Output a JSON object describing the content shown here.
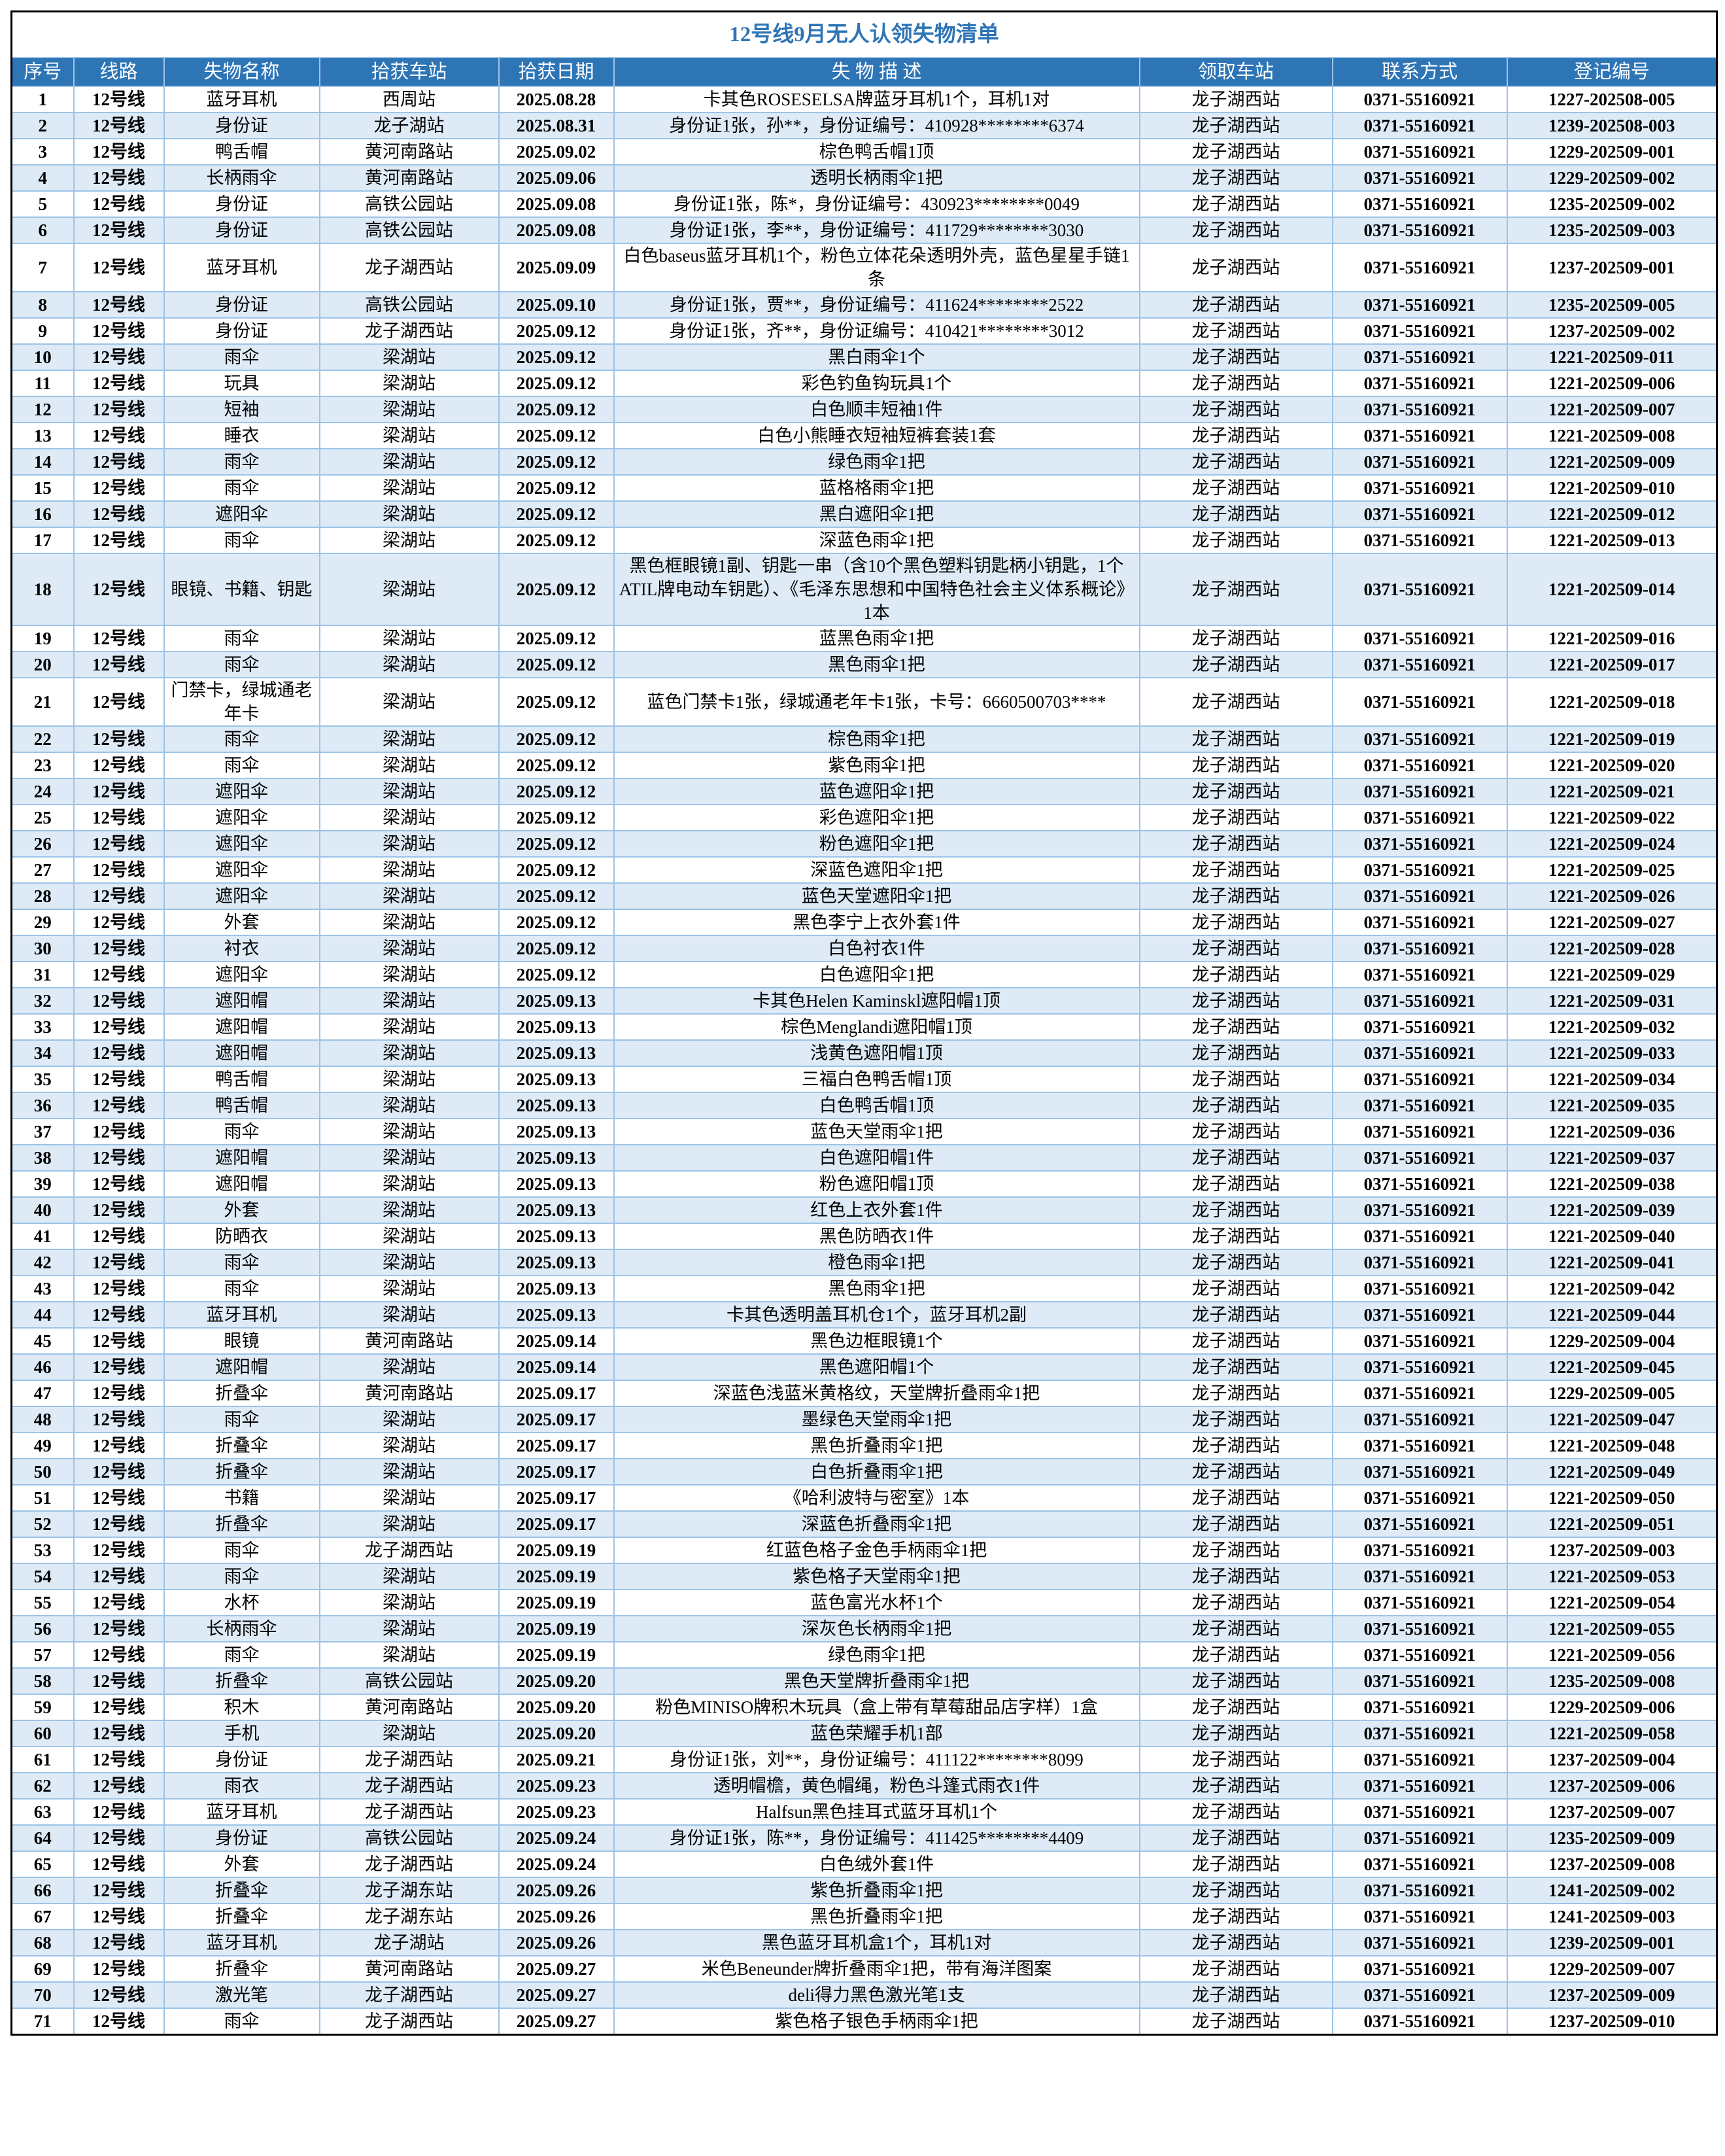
{
  "title": "12号线9月无人认领失物清单",
  "colors": {
    "header_bg": "#2e75b6",
    "title_text": "#2e75b6",
    "stripe": "#deebf7",
    "grid": "#9dc3e6"
  },
  "columns": [
    "序号",
    "线路",
    "失物名称",
    "拾获车站",
    "拾获日期",
    "失 物 描 述",
    "领取车站",
    "联系方式",
    "登记编号"
  ],
  "rows": [
    [
      "1",
      "12号线",
      "蓝牙耳机",
      "西周站",
      "2025.08.28",
      "卡其色ROSESELSA牌蓝牙耳机1个，耳机1对",
      "龙子湖西站",
      "0371-55160921",
      "1227-202508-005"
    ],
    [
      "2",
      "12号线",
      "身份证",
      "龙子湖站",
      "2025.08.31",
      "身份证1张，孙**，身份证编号：410928********6374",
      "龙子湖西站",
      "0371-55160921",
      "1239-202508-003"
    ],
    [
      "3",
      "12号线",
      "鸭舌帽",
      "黄河南路站",
      "2025.09.02",
      "棕色鸭舌帽1顶",
      "龙子湖西站",
      "0371-55160921",
      "1229-202509-001"
    ],
    [
      "4",
      "12号线",
      "长柄雨伞",
      "黄河南路站",
      "2025.09.06",
      "透明长柄雨伞1把",
      "龙子湖西站",
      "0371-55160921",
      "1229-202509-002"
    ],
    [
      "5",
      "12号线",
      "身份证",
      "高铁公园站",
      "2025.09.08",
      "身份证1张，陈*，身份证编号：430923********0049",
      "龙子湖西站",
      "0371-55160921",
      "1235-202509-002"
    ],
    [
      "6",
      "12号线",
      "身份证",
      "高铁公园站",
      "2025.09.08",
      "身份证1张，李**，身份证编号：411729********3030",
      "龙子湖西站",
      "0371-55160921",
      "1235-202509-003"
    ],
    [
      "7",
      "12号线",
      "蓝牙耳机",
      "龙子湖西站",
      "2025.09.09",
      "白色baseus蓝牙耳机1个，粉色立体花朵透明外壳，蓝色星星手链1条",
      "龙子湖西站",
      "0371-55160921",
      "1237-202509-001"
    ],
    [
      "8",
      "12号线",
      "身份证",
      "高铁公园站",
      "2025.09.10",
      "身份证1张，贾**，身份证编号：411624********2522",
      "龙子湖西站",
      "0371-55160921",
      "1235-202509-005"
    ],
    [
      "9",
      "12号线",
      "身份证",
      "龙子湖西站",
      "2025.09.12",
      "身份证1张，齐**，身份证编号：410421********3012",
      "龙子湖西站",
      "0371-55160921",
      "1237-202509-002"
    ],
    [
      "10",
      "12号线",
      "雨伞",
      "梁湖站",
      "2025.09.12",
      "黑白雨伞1个",
      "龙子湖西站",
      "0371-55160921",
      "1221-202509-011"
    ],
    [
      "11",
      "12号线",
      "玩具",
      "梁湖站",
      "2025.09.12",
      "彩色钓鱼钩玩具1个",
      "龙子湖西站",
      "0371-55160921",
      "1221-202509-006"
    ],
    [
      "12",
      "12号线",
      "短袖",
      "梁湖站",
      "2025.09.12",
      "白色顺丰短袖1件",
      "龙子湖西站",
      "0371-55160921",
      "1221-202509-007"
    ],
    [
      "13",
      "12号线",
      "睡衣",
      "梁湖站",
      "2025.09.12",
      "白色小熊睡衣短袖短裤套装1套",
      "龙子湖西站",
      "0371-55160921",
      "1221-202509-008"
    ],
    [
      "14",
      "12号线",
      "雨伞",
      "梁湖站",
      "2025.09.12",
      "绿色雨伞1把",
      "龙子湖西站",
      "0371-55160921",
      "1221-202509-009"
    ],
    [
      "15",
      "12号线",
      "雨伞",
      "梁湖站",
      "2025.09.12",
      "蓝格格雨伞1把",
      "龙子湖西站",
      "0371-55160921",
      "1221-202509-010"
    ],
    [
      "16",
      "12号线",
      "遮阳伞",
      "梁湖站",
      "2025.09.12",
      "黑白遮阳伞1把",
      "龙子湖西站",
      "0371-55160921",
      "1221-202509-012"
    ],
    [
      "17",
      "12号线",
      "雨伞",
      "梁湖站",
      "2025.09.12",
      "深蓝色雨伞1把",
      "龙子湖西站",
      "0371-55160921",
      "1221-202509-013"
    ],
    [
      "18",
      "12号线",
      "眼镜、书籍、钥匙",
      "梁湖站",
      "2025.09.12",
      "黑色框眼镜1副、钥匙一串（含10个黑色塑料钥匙柄小钥匙，1个ATIL牌电动车钥匙）、《毛泽东思想和中国特色社会主义体系概论》1本",
      "龙子湖西站",
      "0371-55160921",
      "1221-202509-014"
    ],
    [
      "19",
      "12号线",
      "雨伞",
      "梁湖站",
      "2025.09.12",
      "蓝黑色雨伞1把",
      "龙子湖西站",
      "0371-55160921",
      "1221-202509-016"
    ],
    [
      "20",
      "12号线",
      "雨伞",
      "梁湖站",
      "2025.09.12",
      "黑色雨伞1把",
      "龙子湖西站",
      "0371-55160921",
      "1221-202509-017"
    ],
    [
      "21",
      "12号线",
      "门禁卡，绿城通老年卡",
      "梁湖站",
      "2025.09.12",
      "蓝色门禁卡1张，绿城通老年卡1张，卡号：6660500703****",
      "龙子湖西站",
      "0371-55160921",
      "1221-202509-018"
    ],
    [
      "22",
      "12号线",
      "雨伞",
      "梁湖站",
      "2025.09.12",
      "棕色雨伞1把",
      "龙子湖西站",
      "0371-55160921",
      "1221-202509-019"
    ],
    [
      "23",
      "12号线",
      "雨伞",
      "梁湖站",
      "2025.09.12",
      "紫色雨伞1把",
      "龙子湖西站",
      "0371-55160921",
      "1221-202509-020"
    ],
    [
      "24",
      "12号线",
      "遮阳伞",
      "梁湖站",
      "2025.09.12",
      "蓝色遮阳伞1把",
      "龙子湖西站",
      "0371-55160921",
      "1221-202509-021"
    ],
    [
      "25",
      "12号线",
      "遮阳伞",
      "梁湖站",
      "2025.09.12",
      "彩色遮阳伞1把",
      "龙子湖西站",
      "0371-55160921",
      "1221-202509-022"
    ],
    [
      "26",
      "12号线",
      "遮阳伞",
      "梁湖站",
      "2025.09.12",
      "粉色遮阳伞1把",
      "龙子湖西站",
      "0371-55160921",
      "1221-202509-024"
    ],
    [
      "27",
      "12号线",
      "遮阳伞",
      "梁湖站",
      "2025.09.12",
      "深蓝色遮阳伞1把",
      "龙子湖西站",
      "0371-55160921",
      "1221-202509-025"
    ],
    [
      "28",
      "12号线",
      "遮阳伞",
      "梁湖站",
      "2025.09.12",
      "蓝色天堂遮阳伞1把",
      "龙子湖西站",
      "0371-55160921",
      "1221-202509-026"
    ],
    [
      "29",
      "12号线",
      "外套",
      "梁湖站",
      "2025.09.12",
      "黑色李宁上衣外套1件",
      "龙子湖西站",
      "0371-55160921",
      "1221-202509-027"
    ],
    [
      "30",
      "12号线",
      "衬衣",
      "梁湖站",
      "2025.09.12",
      "白色衬衣1件",
      "龙子湖西站",
      "0371-55160921",
      "1221-202509-028"
    ],
    [
      "31",
      "12号线",
      "遮阳伞",
      "梁湖站",
      "2025.09.12",
      "白色遮阳伞1把",
      "龙子湖西站",
      "0371-55160921",
      "1221-202509-029"
    ],
    [
      "32",
      "12号线",
      "遮阳帽",
      "梁湖站",
      "2025.09.13",
      "卡其色Helen Kaminskl遮阳帽1顶",
      "龙子湖西站",
      "0371-55160921",
      "1221-202509-031"
    ],
    [
      "33",
      "12号线",
      "遮阳帽",
      "梁湖站",
      "2025.09.13",
      "棕色Menglandi遮阳帽1顶",
      "龙子湖西站",
      "0371-55160921",
      "1221-202509-032"
    ],
    [
      "34",
      "12号线",
      "遮阳帽",
      "梁湖站",
      "2025.09.13",
      "浅黄色遮阳帽1顶",
      "龙子湖西站",
      "0371-55160921",
      "1221-202509-033"
    ],
    [
      "35",
      "12号线",
      "鸭舌帽",
      "梁湖站",
      "2025.09.13",
      "三福白色鸭舌帽1顶",
      "龙子湖西站",
      "0371-55160921",
      "1221-202509-034"
    ],
    [
      "36",
      "12号线",
      "鸭舌帽",
      "梁湖站",
      "2025.09.13",
      "白色鸭舌帽1顶",
      "龙子湖西站",
      "0371-55160921",
      "1221-202509-035"
    ],
    [
      "37",
      "12号线",
      "雨伞",
      "梁湖站",
      "2025.09.13",
      "蓝色天堂雨伞1把",
      "龙子湖西站",
      "0371-55160921",
      "1221-202509-036"
    ],
    [
      "38",
      "12号线",
      "遮阳帽",
      "梁湖站",
      "2025.09.13",
      "白色遮阳帽1件",
      "龙子湖西站",
      "0371-55160921",
      "1221-202509-037"
    ],
    [
      "39",
      "12号线",
      "遮阳帽",
      "梁湖站",
      "2025.09.13",
      "粉色遮阳帽1顶",
      "龙子湖西站",
      "0371-55160921",
      "1221-202509-038"
    ],
    [
      "40",
      "12号线",
      "外套",
      "梁湖站",
      "2025.09.13",
      "红色上衣外套1件",
      "龙子湖西站",
      "0371-55160921",
      "1221-202509-039"
    ],
    [
      "41",
      "12号线",
      "防晒衣",
      "梁湖站",
      "2025.09.13",
      "黑色防晒衣1件",
      "龙子湖西站",
      "0371-55160921",
      "1221-202509-040"
    ],
    [
      "42",
      "12号线",
      "雨伞",
      "梁湖站",
      "2025.09.13",
      "橙色雨伞1把",
      "龙子湖西站",
      "0371-55160921",
      "1221-202509-041"
    ],
    [
      "43",
      "12号线",
      "雨伞",
      "梁湖站",
      "2025.09.13",
      "黑色雨伞1把",
      "龙子湖西站",
      "0371-55160921",
      "1221-202509-042"
    ],
    [
      "44",
      "12号线",
      "蓝牙耳机",
      "梁湖站",
      "2025.09.13",
      "卡其色透明盖耳机仓1个，蓝牙耳机2副",
      "龙子湖西站",
      "0371-55160921",
      "1221-202509-044"
    ],
    [
      "45",
      "12号线",
      "眼镜",
      "黄河南路站",
      "2025.09.14",
      "黑色边框眼镜1个",
      "龙子湖西站",
      "0371-55160921",
      "1229-202509-004"
    ],
    [
      "46",
      "12号线",
      "遮阳帽",
      "梁湖站",
      "2025.09.14",
      "黑色遮阳帽1个",
      "龙子湖西站",
      "0371-55160921",
      "1221-202509-045"
    ],
    [
      "47",
      "12号线",
      "折叠伞",
      "黄河南路站",
      "2025.09.17",
      "深蓝色浅蓝米黄格纹，天堂牌折叠雨伞1把",
      "龙子湖西站",
      "0371-55160921",
      "1229-202509-005"
    ],
    [
      "48",
      "12号线",
      "雨伞",
      "梁湖站",
      "2025.09.17",
      "墨绿色天堂雨伞1把",
      "龙子湖西站",
      "0371-55160921",
      "1221-202509-047"
    ],
    [
      "49",
      "12号线",
      "折叠伞",
      "梁湖站",
      "2025.09.17",
      "黑色折叠雨伞1把",
      "龙子湖西站",
      "0371-55160921",
      "1221-202509-048"
    ],
    [
      "50",
      "12号线",
      "折叠伞",
      "梁湖站",
      "2025.09.17",
      "白色折叠雨伞1把",
      "龙子湖西站",
      "0371-55160921",
      "1221-202509-049"
    ],
    [
      "51",
      "12号线",
      "书籍",
      "梁湖站",
      "2025.09.17",
      "《哈利波特与密室》1本",
      "龙子湖西站",
      "0371-55160921",
      "1221-202509-050"
    ],
    [
      "52",
      "12号线",
      "折叠伞",
      "梁湖站",
      "2025.09.17",
      "深蓝色折叠雨伞1把",
      "龙子湖西站",
      "0371-55160921",
      "1221-202509-051"
    ],
    [
      "53",
      "12号线",
      "雨伞",
      "龙子湖西站",
      "2025.09.19",
      "红蓝色格子金色手柄雨伞1把",
      "龙子湖西站",
      "0371-55160921",
      "1237-202509-003"
    ],
    [
      "54",
      "12号线",
      "雨伞",
      "梁湖站",
      "2025.09.19",
      "紫色格子天堂雨伞1把",
      "龙子湖西站",
      "0371-55160921",
      "1221-202509-053"
    ],
    [
      "55",
      "12号线",
      "水杯",
      "梁湖站",
      "2025.09.19",
      "蓝色富光水杯1个",
      "龙子湖西站",
      "0371-55160921",
      "1221-202509-054"
    ],
    [
      "56",
      "12号线",
      "长柄雨伞",
      "梁湖站",
      "2025.09.19",
      "深灰色长柄雨伞1把",
      "龙子湖西站",
      "0371-55160921",
      "1221-202509-055"
    ],
    [
      "57",
      "12号线",
      "雨伞",
      "梁湖站",
      "2025.09.19",
      "绿色雨伞1把",
      "龙子湖西站",
      "0371-55160921",
      "1221-202509-056"
    ],
    [
      "58",
      "12号线",
      "折叠伞",
      "高铁公园站",
      "2025.09.20",
      "黑色天堂牌折叠雨伞1把",
      "龙子湖西站",
      "0371-55160921",
      "1235-202509-008"
    ],
    [
      "59",
      "12号线",
      "积木",
      "黄河南路站",
      "2025.09.20",
      "粉色MINISO牌积木玩具（盒上带有草莓甜品店字样）1盒",
      "龙子湖西站",
      "0371-55160921",
      "1229-202509-006"
    ],
    [
      "60",
      "12号线",
      "手机",
      "梁湖站",
      "2025.09.20",
      "蓝色荣耀手机1部",
      "龙子湖西站",
      "0371-55160921",
      "1221-202509-058"
    ],
    [
      "61",
      "12号线",
      "身份证",
      "龙子湖西站",
      "2025.09.21",
      "身份证1张，刘**，身份证编号：411122********8099",
      "龙子湖西站",
      "0371-55160921",
      "1237-202509-004"
    ],
    [
      "62",
      "12号线",
      "雨衣",
      "龙子湖西站",
      "2025.09.23",
      "透明帽檐，黄色帽绳，粉色斗篷式雨衣1件",
      "龙子湖西站",
      "0371-55160921",
      "1237-202509-006"
    ],
    [
      "63",
      "12号线",
      "蓝牙耳机",
      "龙子湖西站",
      "2025.09.23",
      "Halfsun黑色挂耳式蓝牙耳机1个",
      "龙子湖西站",
      "0371-55160921",
      "1237-202509-007"
    ],
    [
      "64",
      "12号线",
      "身份证",
      "高铁公园站",
      "2025.09.24",
      "身份证1张，陈**，身份证编号：411425********4409",
      "龙子湖西站",
      "0371-55160921",
      "1235-202509-009"
    ],
    [
      "65",
      "12号线",
      "外套",
      "龙子湖西站",
      "2025.09.24",
      "白色绒外套1件",
      "龙子湖西站",
      "0371-55160921",
      "1237-202509-008"
    ],
    [
      "66",
      "12号线",
      "折叠伞",
      "龙子湖东站",
      "2025.09.26",
      "紫色折叠雨伞1把",
      "龙子湖西站",
      "0371-55160921",
      "1241-202509-002"
    ],
    [
      "67",
      "12号线",
      "折叠伞",
      "龙子湖东站",
      "2025.09.26",
      "黑色折叠雨伞1把",
      "龙子湖西站",
      "0371-55160921",
      "1241-202509-003"
    ],
    [
      "68",
      "12号线",
      "蓝牙耳机",
      "龙子湖站",
      "2025.09.26",
      "黑色蓝牙耳机盒1个，耳机1对",
      "龙子湖西站",
      "0371-55160921",
      "1239-202509-001"
    ],
    [
      "69",
      "12号线",
      "折叠伞",
      "黄河南路站",
      "2025.09.27",
      "米色Beneunder牌折叠雨伞1把，带有海洋图案",
      "龙子湖西站",
      "0371-55160921",
      "1229-202509-007"
    ],
    [
      "70",
      "12号线",
      "激光笔",
      "龙子湖西站",
      "2025.09.27",
      "deli得力黑色激光笔1支",
      "龙子湖西站",
      "0371-55160921",
      "1237-202509-009"
    ],
    [
      "71",
      "12号线",
      "雨伞",
      "龙子湖西站",
      "2025.09.27",
      "紫色格子银色手柄雨伞1把",
      "龙子湖西站",
      "0371-55160921",
      "1237-202509-010"
    ]
  ]
}
